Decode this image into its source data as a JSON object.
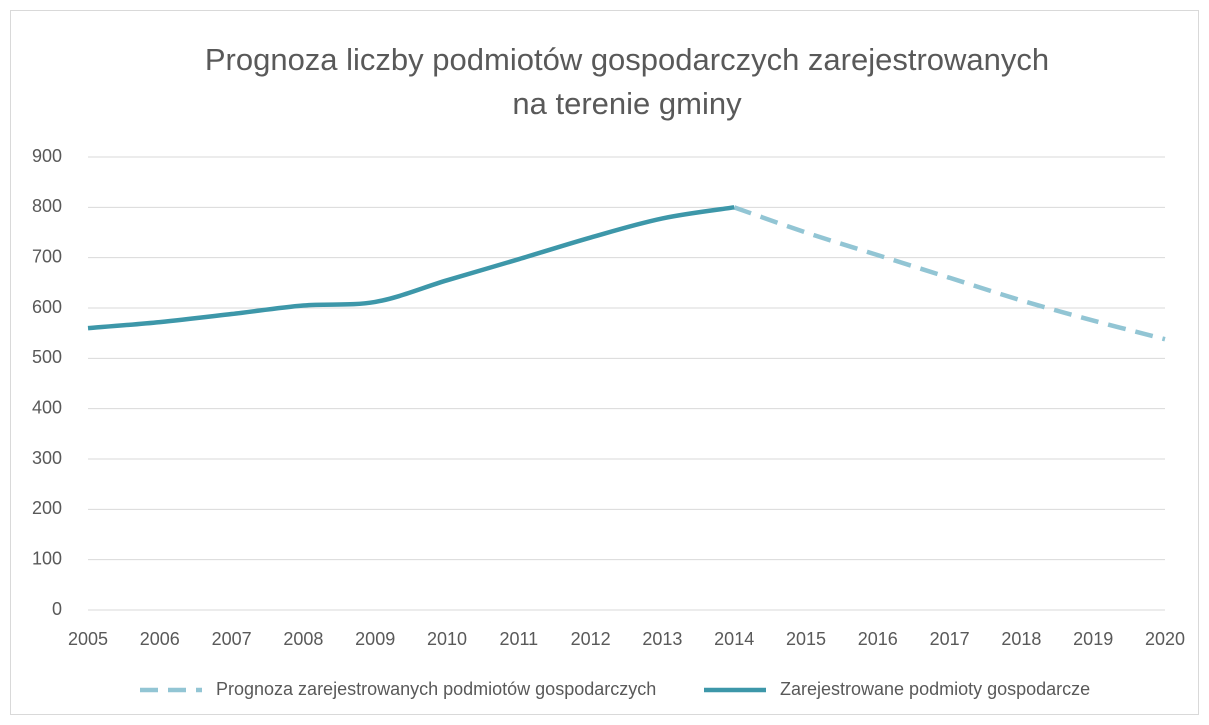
{
  "chart_data": {
    "type": "line",
    "title": [
      "Prognoza liczby podmiotów gospodarczych zarejestrowanych",
      "na terenie gminy"
    ],
    "x": [
      2005,
      2006,
      2007,
      2008,
      2009,
      2010,
      2011,
      2012,
      2013,
      2014,
      2015,
      2016,
      2017,
      2018,
      2019,
      2020
    ],
    "xlim": [
      2005,
      2020
    ],
    "xticks": [
      2005,
      2006,
      2007,
      2008,
      2009,
      2010,
      2011,
      2012,
      2013,
      2014,
      2015,
      2016,
      2017,
      2018,
      2019,
      2020
    ],
    "ylim": [
      0,
      900
    ],
    "yticks": [
      0,
      100,
      200,
      300,
      400,
      500,
      600,
      700,
      800,
      900
    ],
    "grid": true,
    "legend": "bottom",
    "series": [
      {
        "name": "Prognoza zarejestrowanych podmiotów gospodarczych",
        "color": "#92c5d4",
        "dashed": true,
        "values": [
          null,
          null,
          null,
          null,
          null,
          null,
          null,
          null,
          null,
          800,
          750,
          705,
          660,
          615,
          575,
          538
        ]
      },
      {
        "name": "Zarejestrowane podmioty gospodarcze",
        "color": "#3d97a9",
        "dashed": false,
        "values": [
          560,
          572,
          588,
          605,
          612,
          655,
          697,
          740,
          778,
          800,
          null,
          null,
          null,
          null,
          null,
          null
        ]
      }
    ]
  }
}
